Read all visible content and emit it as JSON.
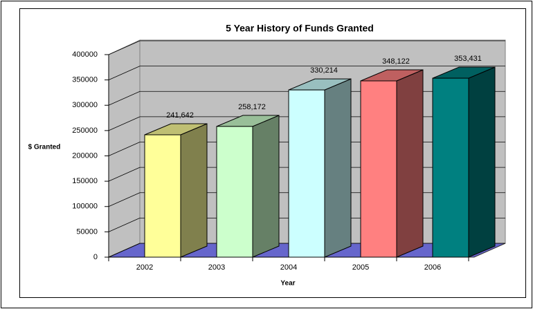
{
  "chart_data": {
    "type": "bar",
    "title": "5 Year History of Funds Granted",
    "x_label": "Year",
    "y_label": "$ Granted",
    "categories": [
      "2002",
      "2003",
      "2004",
      "2005",
      "2006"
    ],
    "values": [
      241642,
      258172,
      330214,
      348122,
      353431
    ],
    "value_labels": [
      "241,642",
      "258,172",
      "330,214",
      "348,122",
      "353,431"
    ],
    "colors": [
      "#ffff99",
      "#ccffcc",
      "#ccffff",
      "#ff8080",
      "#008080"
    ],
    "ylim": [
      0,
      400000
    ],
    "yticks": [
      0,
      50000,
      100000,
      150000,
      200000,
      250000,
      300000,
      350000,
      400000
    ],
    "grid": true
  }
}
